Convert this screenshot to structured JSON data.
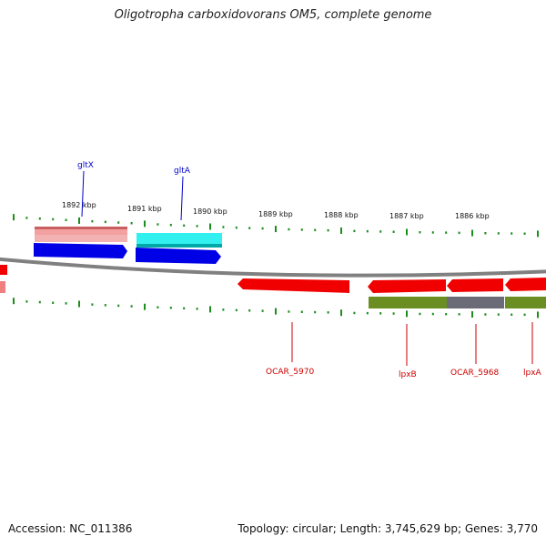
{
  "title": "Oligotropha carboxidovorans OM5, complete genome",
  "footer": {
    "accession": "Accession: NC_011386",
    "summary": "Topology: circular; Length: 3,745,629 bp; Genes: 3,770"
  },
  "scale_labels": [
    "1892 kbp",
    "1891 kbp",
    "1890 kbp",
    "1889 kbp",
    "1888 kbp",
    "1887 kbp",
    "1886 kbp"
  ],
  "gene_labels_top": [
    "gltX",
    "gltA"
  ],
  "gene_labels_bottom": [
    "OCAR_5970",
    "lpxB",
    "OCAR_5968",
    "lpxA"
  ],
  "colors": {
    "backbone": "#808080",
    "tick": "#1e8c1e",
    "cds_blue": "#0000e6",
    "cds_cyan": "#00dede",
    "cds_pink": "#e87f7f",
    "cds_red": "#f00000",
    "cds_olive": "#668a22",
    "cds_gray": "#6b6b78",
    "label_blue": "#0000cc",
    "label_red": "#cc0000"
  }
}
